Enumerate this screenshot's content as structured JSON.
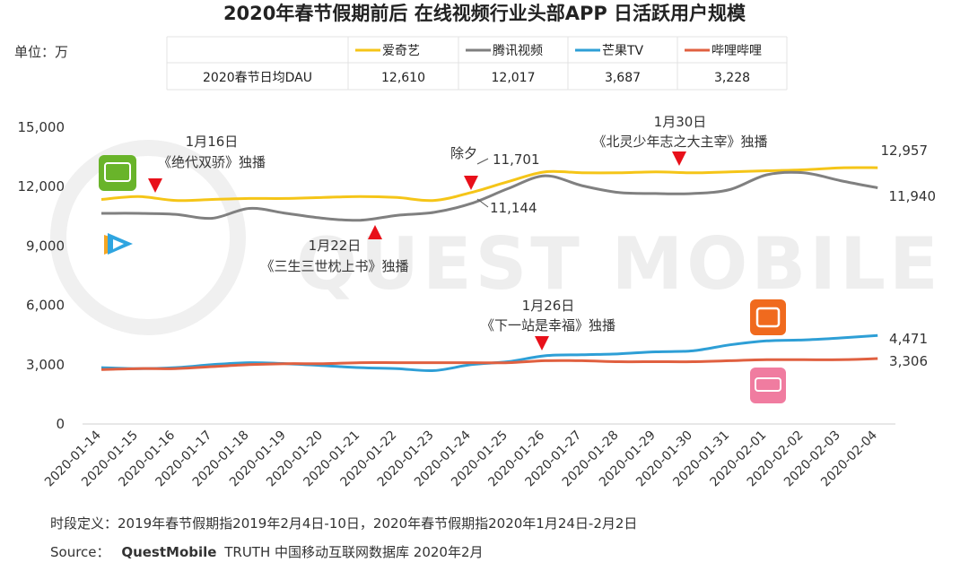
{
  "title": "2020年春节假期前后 在线视频行业头部APP 日活跃用户规模",
  "unit_label": "单位：万",
  "watermark": "QUEST MOBILE",
  "legend_table": {
    "row_label": "2020春节日均DAU",
    "columns": [
      {
        "name": "爱奇艺",
        "value": "12,610",
        "color": "#f5c518"
      },
      {
        "name": "腾讯视频",
        "value": "12,017",
        "color": "#808080"
      },
      {
        "name": "芒果TV",
        "value": "3,687",
        "color": "#2e9fd6"
      },
      {
        "name": "哔哩哔哩",
        "value": "3,228",
        "color": "#e06040"
      }
    ]
  },
  "annotations": [
    {
      "date_label": "1月16日",
      "text": "《绝代双骄》独播",
      "x_index": 1.5,
      "y_value": 11300,
      "marker": "down"
    },
    {
      "date_label": "1月22日",
      "text": "《三生三世枕上书》独播",
      "x_index": 7.6,
      "y_value": 10200,
      "marker": "up"
    },
    {
      "date_label": "除夕",
      "text": "",
      "x_index": 10.5,
      "y_value": 11700,
      "marker": "down"
    },
    {
      "date_label": "1月26日",
      "text": "《下一站是幸福》独播",
      "x_index": 12.6,
      "y_value": 3450,
      "marker": "down"
    },
    {
      "date_label": "1月30日",
      "text": "《北灵少年志之大主宰》独播",
      "x_index": 16.2,
      "y_value": 12800,
      "marker": "down"
    }
  ],
  "point_labels": [
    {
      "text": "11,701",
      "x_index": 10.5,
      "y_value": 11701
    },
    {
      "text": "11,144",
      "x_index": 10.5,
      "y_value": 11144
    },
    {
      "text": "12,957",
      "x_index": 20,
      "y_value": 12957
    },
    {
      "text": "11,940",
      "x_index": 20,
      "y_value": 11940
    },
    {
      "text": "4,471",
      "x_index": 20,
      "y_value": 4471
    },
    {
      "text": "3,306",
      "x_index": 20,
      "y_value": 3306
    }
  ],
  "footer": {
    "definition": "时段定义：2019年春节假期指2019年2月4日-10日，2020年春节假期指2020年1月24日-2月2日",
    "source_prefix": "Source：",
    "source_brand": "QuestMobile",
    "source_rest": "TRUTH 中国移动互联网数据库 2020年2月"
  },
  "chart_data": {
    "type": "line",
    "title": "2020年春节假期前后 在线视频行业头部APP 日活跃用户规模",
    "xlabel": "",
    "ylabel": "单位：万",
    "ylim": [
      0,
      15000
    ],
    "yticks": [
      0,
      3000,
      6000,
      9000,
      12000,
      15000
    ],
    "ytick_labels": [
      "0",
      "3,000",
      "6,000",
      "9,000",
      "12,000",
      "15,000"
    ],
    "grid": false,
    "categories": [
      "2020-01-14",
      "2020-01-15",
      "2020-01-16",
      "2020-01-17",
      "2020-01-18",
      "2020-01-19",
      "2020-01-20",
      "2020-01-21",
      "2020-01-22",
      "2020-01-23",
      "2020-01-24",
      "2020-01-25",
      "2020-01-26",
      "2020-01-27",
      "2020-01-28",
      "2020-01-29",
      "2020-01-30",
      "2020-01-31",
      "2020-02-01",
      "2020-02-02",
      "2020-02-03",
      "2020-02-04"
    ],
    "series": [
      {
        "name": "爱奇艺",
        "color": "#f5c518",
        "values": [
          11350,
          11500,
          11300,
          11350,
          11400,
          11400,
          11450,
          11500,
          11450,
          11300,
          11701,
          12250,
          12750,
          12700,
          12700,
          12750,
          12700,
          12750,
          12800,
          12850,
          12950,
          12957
        ]
      },
      {
        "name": "腾讯视频",
        "color": "#808080",
        "values": [
          10650,
          10650,
          10600,
          10400,
          10900,
          10650,
          10400,
          10300,
          10550,
          10700,
          11144,
          11900,
          12550,
          12050,
          11700,
          11650,
          11650,
          11850,
          12600,
          12700,
          12300,
          11940
        ]
      },
      {
        "name": "芒果TV",
        "color": "#2e9fd6",
        "values": [
          2850,
          2800,
          2850,
          3000,
          3100,
          3050,
          2950,
          2850,
          2800,
          2700,
          3000,
          3150,
          3450,
          3500,
          3550,
          3650,
          3700,
          4000,
          4200,
          4250,
          4350,
          4471
        ]
      },
      {
        "name": "哔哩哔哩",
        "color": "#e06040",
        "values": [
          2750,
          2800,
          2800,
          2900,
          3000,
          3050,
          3050,
          3100,
          3100,
          3100,
          3100,
          3100,
          3200,
          3200,
          3150,
          3150,
          3150,
          3200,
          3250,
          3250,
          3250,
          3306
        ]
      }
    ]
  }
}
